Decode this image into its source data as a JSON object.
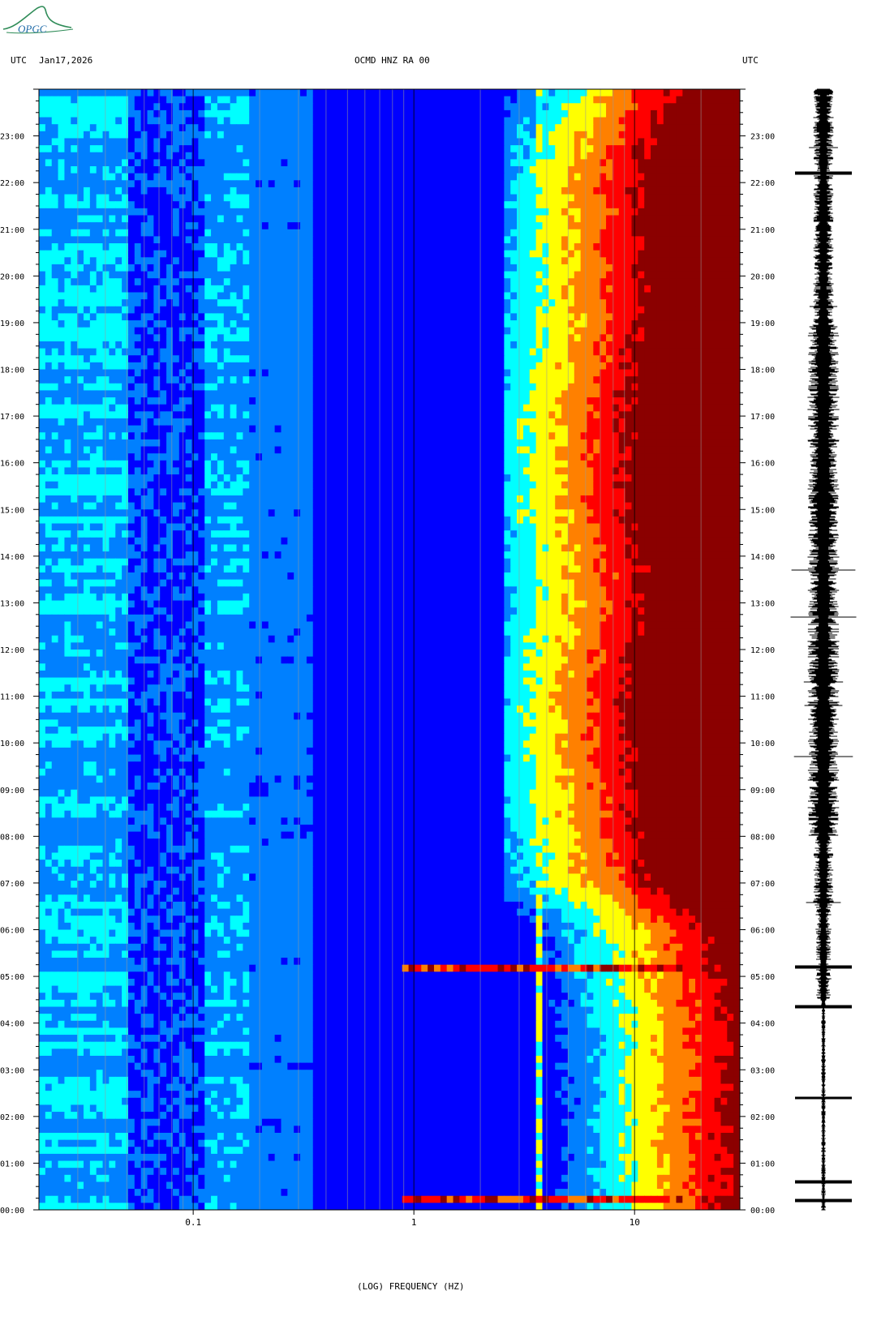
{
  "header": {
    "left_tz": "UTC",
    "date": "Jan17,2026",
    "station": "OCMD HNZ RA 00",
    "right_tz": "UTC"
  },
  "logo": {
    "text": "OPGC",
    "color": "#2e8b57"
  },
  "chart_data": {
    "type": "heatmap",
    "title": "OCMD HNZ RA 00",
    "xlabel": "(LOG) FREQUENCY (HZ)",
    "xscale": "log",
    "xlim": [
      0.02,
      30
    ],
    "x_ticks": [
      0.1,
      1,
      10
    ],
    "x_tick_labels": [
      "0.1",
      "1",
      "10"
    ],
    "y_tick_labels": [
      "00:00",
      "01:00",
      "02:00",
      "03:00",
      "04:00",
      "05:00",
      "06:00",
      "07:00",
      "08:00",
      "09:00",
      "10:00",
      "11:00",
      "12:00",
      "13:00",
      "14:00",
      "15:00",
      "16:00",
      "17:00",
      "18:00",
      "19:00",
      "20:00",
      "21:00",
      "22:00",
      "23:00"
    ],
    "ylim_hours": [
      0,
      24
    ],
    "colormap": [
      "#00008b",
      "#0000ff",
      "#0080ff",
      "#00ffff",
      "#ffff00",
      "#ff8000",
      "#ff0000",
      "#8b0000"
    ],
    "features": {
      "persistent_line_hz": 3.7,
      "high_freq_saturation_start_hz_by_hour": [
        [
          0,
          20
        ],
        [
          1,
          20
        ],
        [
          2,
          20
        ],
        [
          3,
          20
        ],
        [
          4,
          20
        ],
        [
          5,
          18
        ],
        [
          6,
          16
        ],
        [
          7,
          9
        ],
        [
          8,
          8
        ],
        [
          9,
          7.5
        ],
        [
          10,
          7
        ],
        [
          11,
          7
        ],
        [
          12,
          7.5
        ],
        [
          13,
          8
        ],
        [
          14,
          8
        ],
        [
          15,
          7
        ],
        [
          16,
          7
        ],
        [
          17,
          7
        ],
        [
          18,
          7.5
        ],
        [
          19,
          8
        ],
        [
          20,
          8
        ],
        [
          21,
          8
        ],
        [
          22,
          8
        ],
        [
          23,
          9
        ],
        [
          24,
          12
        ]
      ],
      "events_hour": [
        0.2,
        0.6,
        2.4,
        4.35,
        5.2,
        22.2
      ]
    },
    "grid": true
  }
}
